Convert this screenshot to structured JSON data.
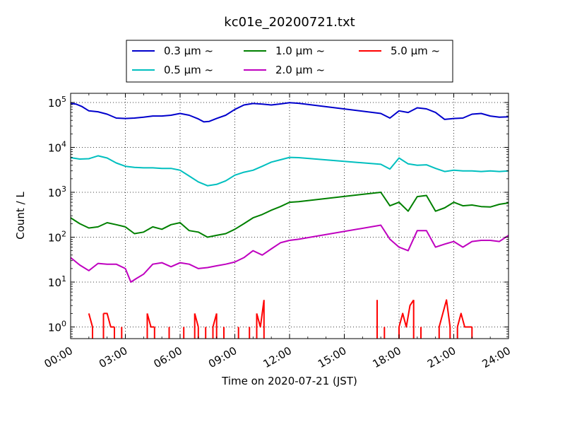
{
  "chart_data": {
    "type": "line",
    "title": "kc01e_20200721.txt",
    "xlabel": "Time on 2020-07-21 (JST)",
    "ylabel": "Count / L",
    "x_unit": "hours",
    "xlim": [
      0,
      24
    ],
    "ylim": [
      0.55,
      160000
    ],
    "yscale": "log",
    "grid": true,
    "legend_position": "top-center",
    "x_tick_labels": [
      "00:00",
      "03:00",
      "06:00",
      "09:00",
      "12:00",
      "15:00",
      "18:00",
      "21:00",
      "24:00"
    ],
    "y_tick_labels": [
      {
        "base": "10",
        "exp": "0"
      },
      {
        "base": "10",
        "exp": "1"
      },
      {
        "base": "10",
        "exp": "2"
      },
      {
        "base": "10",
        "exp": "3"
      },
      {
        "base": "10",
        "exp": "4"
      },
      {
        "base": "10",
        "exp": "5"
      }
    ],
    "series": [
      {
        "name": "0.3 μm ~",
        "color": "#0000cc",
        "points": [
          [
            0,
            95000
          ],
          [
            0.3,
            92000
          ],
          [
            0.6,
            82000
          ],
          [
            1.0,
            65000
          ],
          [
            1.5,
            62000
          ],
          [
            2.0,
            55000
          ],
          [
            2.5,
            45000
          ],
          [
            3.0,
            44000
          ],
          [
            3.5,
            45000
          ],
          [
            4.0,
            47000
          ],
          [
            4.5,
            50000
          ],
          [
            5.0,
            50000
          ],
          [
            5.5,
            52000
          ],
          [
            6.0,
            57000
          ],
          [
            6.5,
            52000
          ],
          [
            7.0,
            43000
          ],
          [
            7.3,
            37000
          ],
          [
            7.6,
            38000
          ],
          [
            8.0,
            44000
          ],
          [
            8.5,
            52000
          ],
          [
            9.0,
            70000
          ],
          [
            9.5,
            88000
          ],
          [
            10.0,
            95000
          ],
          [
            10.5,
            92000
          ],
          [
            11.0,
            88000
          ],
          [
            11.5,
            93000
          ],
          [
            12.0,
            99000
          ],
          [
            12.5,
            96000
          ],
          [
            17.0,
            57000
          ],
          [
            17.5,
            45000
          ],
          [
            18.0,
            65000
          ],
          [
            18.5,
            60000
          ],
          [
            19.0,
            76000
          ],
          [
            19.5,
            72000
          ],
          [
            20.0,
            60000
          ],
          [
            20.5,
            42000
          ],
          [
            21.0,
            44000
          ],
          [
            21.5,
            45000
          ],
          [
            22.0,
            55000
          ],
          [
            22.5,
            57000
          ],
          [
            23.0,
            50000
          ],
          [
            23.5,
            47000
          ],
          [
            24.0,
            48000
          ]
        ]
      },
      {
        "name": "0.5 μm ~",
        "color": "#00bfbf",
        "points": [
          [
            0,
            5900
          ],
          [
            0.5,
            5500
          ],
          [
            1.0,
            5600
          ],
          [
            1.5,
            6500
          ],
          [
            2.0,
            5800
          ],
          [
            2.5,
            4500
          ],
          [
            3.0,
            3800
          ],
          [
            3.5,
            3600
          ],
          [
            4.0,
            3500
          ],
          [
            4.5,
            3500
          ],
          [
            5.0,
            3400
          ],
          [
            5.5,
            3400
          ],
          [
            6.0,
            3100
          ],
          [
            6.5,
            2300
          ],
          [
            7.0,
            1700
          ],
          [
            7.5,
            1400
          ],
          [
            8.0,
            1500
          ],
          [
            8.5,
            1800
          ],
          [
            9.0,
            2400
          ],
          [
            9.5,
            2800
          ],
          [
            10.0,
            3100
          ],
          [
            10.5,
            3800
          ],
          [
            11.0,
            4700
          ],
          [
            11.5,
            5300
          ],
          [
            12.0,
            6000
          ],
          [
            12.5,
            5900
          ],
          [
            17.0,
            4200
          ],
          [
            17.5,
            3300
          ],
          [
            18.0,
            5800
          ],
          [
            18.5,
            4300
          ],
          [
            19.0,
            4000
          ],
          [
            19.5,
            4100
          ],
          [
            20.0,
            3400
          ],
          [
            20.5,
            2900
          ],
          [
            21.0,
            3100
          ],
          [
            21.5,
            3000
          ],
          [
            22.0,
            3000
          ],
          [
            22.5,
            2900
          ],
          [
            23.0,
            3000
          ],
          [
            23.5,
            2900
          ],
          [
            24.0,
            3000
          ]
        ]
      },
      {
        "name": "1.0 μm ~",
        "color": "#008000",
        "points": [
          [
            0,
            270
          ],
          [
            0.5,
            200
          ],
          [
            1.0,
            160
          ],
          [
            1.5,
            170
          ],
          [
            2.0,
            210
          ],
          [
            2.5,
            190
          ],
          [
            3.0,
            170
          ],
          [
            3.5,
            120
          ],
          [
            4.0,
            130
          ],
          [
            4.5,
            170
          ],
          [
            5.0,
            150
          ],
          [
            5.5,
            190
          ],
          [
            6.0,
            210
          ],
          [
            6.5,
            140
          ],
          [
            7.0,
            130
          ],
          [
            7.5,
            100
          ],
          [
            8.0,
            110
          ],
          [
            8.5,
            120
          ],
          [
            9.0,
            150
          ],
          [
            9.5,
            200
          ],
          [
            10.0,
            270
          ],
          [
            10.5,
            320
          ],
          [
            11.0,
            400
          ],
          [
            11.5,
            480
          ],
          [
            12.0,
            600
          ],
          [
            12.5,
            620
          ],
          [
            17.0,
            1000
          ],
          [
            17.5,
            500
          ],
          [
            18.0,
            600
          ],
          [
            18.5,
            380
          ],
          [
            19.0,
            800
          ],
          [
            19.5,
            850
          ],
          [
            20.0,
            380
          ],
          [
            20.5,
            450
          ],
          [
            21.0,
            600
          ],
          [
            21.5,
            500
          ],
          [
            22.0,
            520
          ],
          [
            22.5,
            480
          ],
          [
            23.0,
            470
          ],
          [
            23.5,
            540
          ],
          [
            24.0,
            580
          ]
        ]
      },
      {
        "name": "2.0 μm ~",
        "color": "#bf00bf",
        "points": [
          [
            0,
            35
          ],
          [
            0.5,
            24
          ],
          [
            1.0,
            18
          ],
          [
            1.5,
            26
          ],
          [
            2.0,
            25
          ],
          [
            2.5,
            25
          ],
          [
            3.0,
            20
          ],
          [
            3.3,
            10
          ],
          [
            3.6,
            12
          ],
          [
            4.0,
            15
          ],
          [
            4.5,
            25
          ],
          [
            5.0,
            27
          ],
          [
            5.5,
            22
          ],
          [
            6.0,
            27
          ],
          [
            6.5,
            25
          ],
          [
            7.0,
            20
          ],
          [
            7.5,
            21
          ],
          [
            8.0,
            23
          ],
          [
            8.5,
            25
          ],
          [
            9.0,
            28
          ],
          [
            9.5,
            35
          ],
          [
            10.0,
            50
          ],
          [
            10.5,
            40
          ],
          [
            11.0,
            55
          ],
          [
            11.5,
            75
          ],
          [
            12.0,
            85
          ],
          [
            12.5,
            90
          ],
          [
            17.0,
            185
          ],
          [
            17.5,
            90
          ],
          [
            18.0,
            60
          ],
          [
            18.5,
            50
          ],
          [
            19.0,
            140
          ],
          [
            19.5,
            140
          ],
          [
            20.0,
            60
          ],
          [
            20.5,
            70
          ],
          [
            21.0,
            80
          ],
          [
            21.5,
            60
          ],
          [
            22.0,
            80
          ],
          [
            22.5,
            85
          ],
          [
            23.0,
            85
          ],
          [
            23.5,
            80
          ],
          [
            24.0,
            110
          ]
        ]
      },
      {
        "name": "5.0 μm ~",
        "color": "#ff0000",
        "points": [
          [
            1.0,
            2
          ],
          [
            1.2,
            1
          ],
          [
            1.4,
            0
          ],
          [
            1.6,
            0
          ],
          [
            1.8,
            2
          ],
          [
            2.0,
            2
          ],
          [
            2.2,
            1
          ],
          [
            2.4,
            1
          ],
          [
            2.6,
            0
          ],
          [
            2.8,
            1
          ],
          [
            3.0,
            0
          ],
          [
            3.2,
            0
          ],
          [
            3.6,
            0
          ],
          [
            4.0,
            0
          ],
          [
            4.2,
            2
          ],
          [
            4.4,
            1
          ],
          [
            4.6,
            1
          ],
          [
            4.8,
            0
          ],
          [
            5.0,
            0
          ],
          [
            5.2,
            0
          ],
          [
            5.4,
            1
          ],
          [
            5.6,
            0
          ],
          [
            6.0,
            0
          ],
          [
            6.2,
            1
          ],
          [
            6.4,
            0
          ],
          [
            6.6,
            0
          ],
          [
            6.8,
            2
          ],
          [
            7.0,
            1
          ],
          [
            7.2,
            0
          ],
          [
            7.4,
            1
          ],
          [
            7.6,
            0
          ],
          [
            7.8,
            1
          ],
          [
            8.0,
            2
          ],
          [
            8.2,
            0
          ],
          [
            8.4,
            1
          ],
          [
            8.6,
            0
          ],
          [
            9.0,
            0
          ],
          [
            9.2,
            1
          ],
          [
            9.4,
            0
          ],
          [
            9.6,
            0
          ],
          [
            9.8,
            1
          ],
          [
            10.0,
            0
          ],
          [
            10.2,
            2
          ],
          [
            10.4,
            1
          ],
          [
            10.6,
            4
          ],
          [
            10.8,
            0
          ],
          [
            11.0,
            0
          ],
          [
            16.5,
            0
          ],
          [
            16.8,
            4
          ],
          [
            17.0,
            0
          ],
          [
            17.2,
            1
          ],
          [
            17.4,
            0
          ],
          [
            17.8,
            0
          ],
          [
            18.0,
            1
          ],
          [
            18.2,
            2
          ],
          [
            18.4,
            1
          ],
          [
            18.6,
            3
          ],
          [
            18.8,
            4
          ],
          [
            19.0,
            0
          ],
          [
            19.2,
            1
          ],
          [
            19.4,
            0
          ],
          [
            20.0,
            0
          ],
          [
            20.2,
            1
          ],
          [
            20.4,
            2
          ],
          [
            20.6,
            4
          ],
          [
            20.8,
            1
          ],
          [
            21.0,
            0
          ],
          [
            21.2,
            1
          ],
          [
            21.4,
            2
          ],
          [
            21.6,
            1
          ],
          [
            22.0,
            1
          ],
          [
            22.2,
            0
          ]
        ]
      }
    ]
  }
}
